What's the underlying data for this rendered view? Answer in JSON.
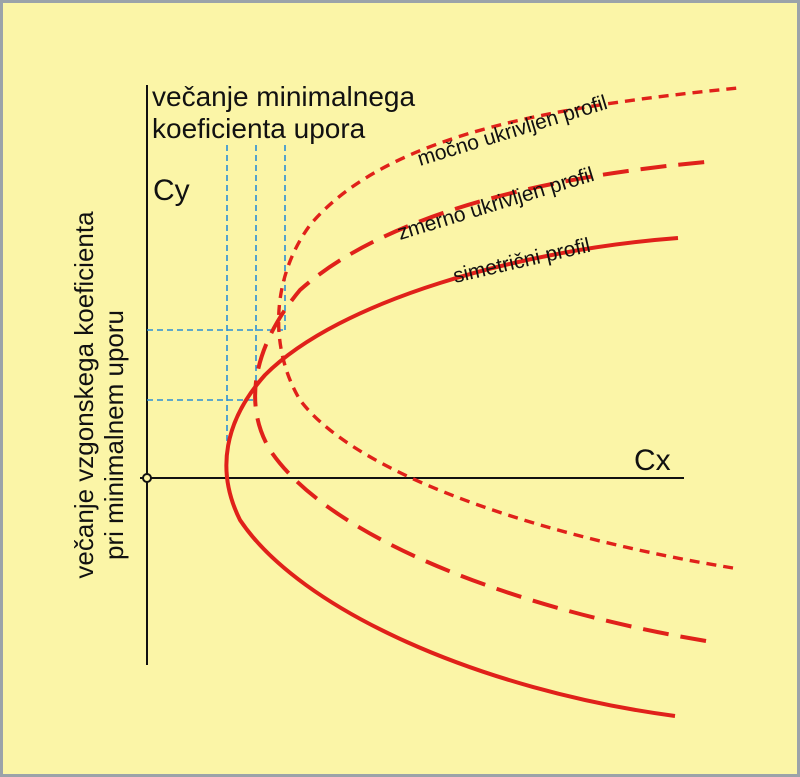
{
  "diagram": {
    "axis_y_label": "Cy",
    "axis_x_label": "Cx",
    "top_label_line1": "večanje minimalnega",
    "top_label_line2": "koeficienta upora",
    "side_label_line1": "večanje vzgonskega koeficienta",
    "side_label_line2": "pri minimalnem uporu",
    "curves": [
      {
        "id": "simetricni",
        "label": "simetrični profil",
        "style": "solid"
      },
      {
        "id": "zmerno",
        "label": "zmerno ukrivljen profil",
        "style": "long-dash"
      },
      {
        "id": "mocno",
        "label": "močno ukrivljen profil",
        "style": "short-dash"
      }
    ]
  },
  "colors": {
    "background": "#fbf5a7",
    "border": "#9ba3a9",
    "curve": "#e0211a",
    "guide": "#2b8fd6",
    "axis": "#111111"
  }
}
